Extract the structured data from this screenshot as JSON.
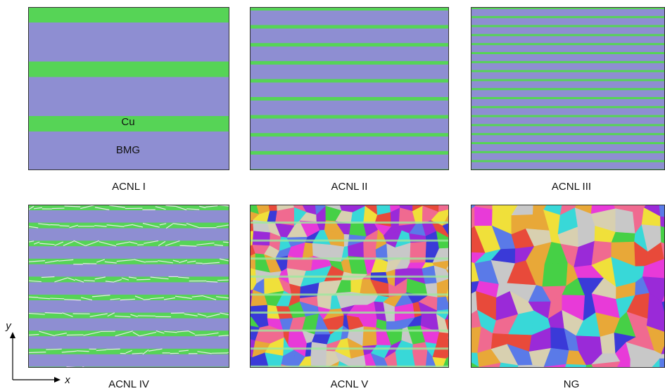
{
  "panels": [
    {
      "label": "ACNL I"
    },
    {
      "label": "ACNL II"
    },
    {
      "label": "ACNL III"
    },
    {
      "label": "ACNL IV"
    },
    {
      "label": "ACNL V"
    },
    {
      "label": "NG"
    }
  ],
  "annotations": {
    "cu": "Cu",
    "bmg": "BMG"
  },
  "axes": {
    "x": "x",
    "y": "y"
  }
}
